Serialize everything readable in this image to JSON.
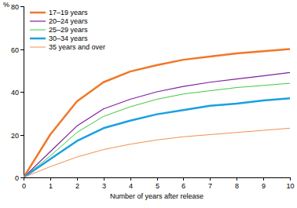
{
  "chart_data": {
    "type": "line",
    "x_label": "Number of years after release",
    "y_label": "%",
    "x": [
      0,
      1,
      2,
      3,
      4,
      5,
      6,
      7,
      8,
      9,
      10
    ],
    "series": [
      {
        "name": "17–19 years",
        "color": "#f07828",
        "values": [
          0,
          20,
          35.5,
          44.5,
          49.5,
          52.5,
          55,
          56.5,
          58,
          59,
          60
        ]
      },
      {
        "name": "20–24 years",
        "color": "#80209f",
        "values": [
          0,
          12,
          24,
          32,
          36.5,
          40,
          42.5,
          44.5,
          46,
          47.5,
          49
        ]
      },
      {
        "name": "25–29 years",
        "color": "#40c840",
        "values": [
          0,
          10,
          21,
          28.5,
          33,
          36.5,
          39,
          40.5,
          42,
          43,
          44
        ]
      },
      {
        "name": "30–34 years",
        "color": "#1aa0e0",
        "values": [
          0,
          8.5,
          17,
          23,
          26.5,
          29.5,
          31.5,
          33.5,
          34.5,
          36,
          37
        ]
      },
      {
        "name": "35 years and over",
        "color": "#f09050",
        "values": [
          0,
          5,
          9.5,
          13,
          15.5,
          17.5,
          19,
          20,
          21,
          22,
          23
        ]
      }
    ],
    "xlim": [
      0,
      10
    ],
    "xticks": [
      0,
      1,
      2,
      3,
      4,
      5,
      6,
      7,
      8,
      9,
      10
    ],
    "ylim": [
      0,
      80
    ],
    "yticks": [
      0,
      20,
      40,
      60,
      80
    ],
    "grid": false,
    "legend": "top-left"
  }
}
